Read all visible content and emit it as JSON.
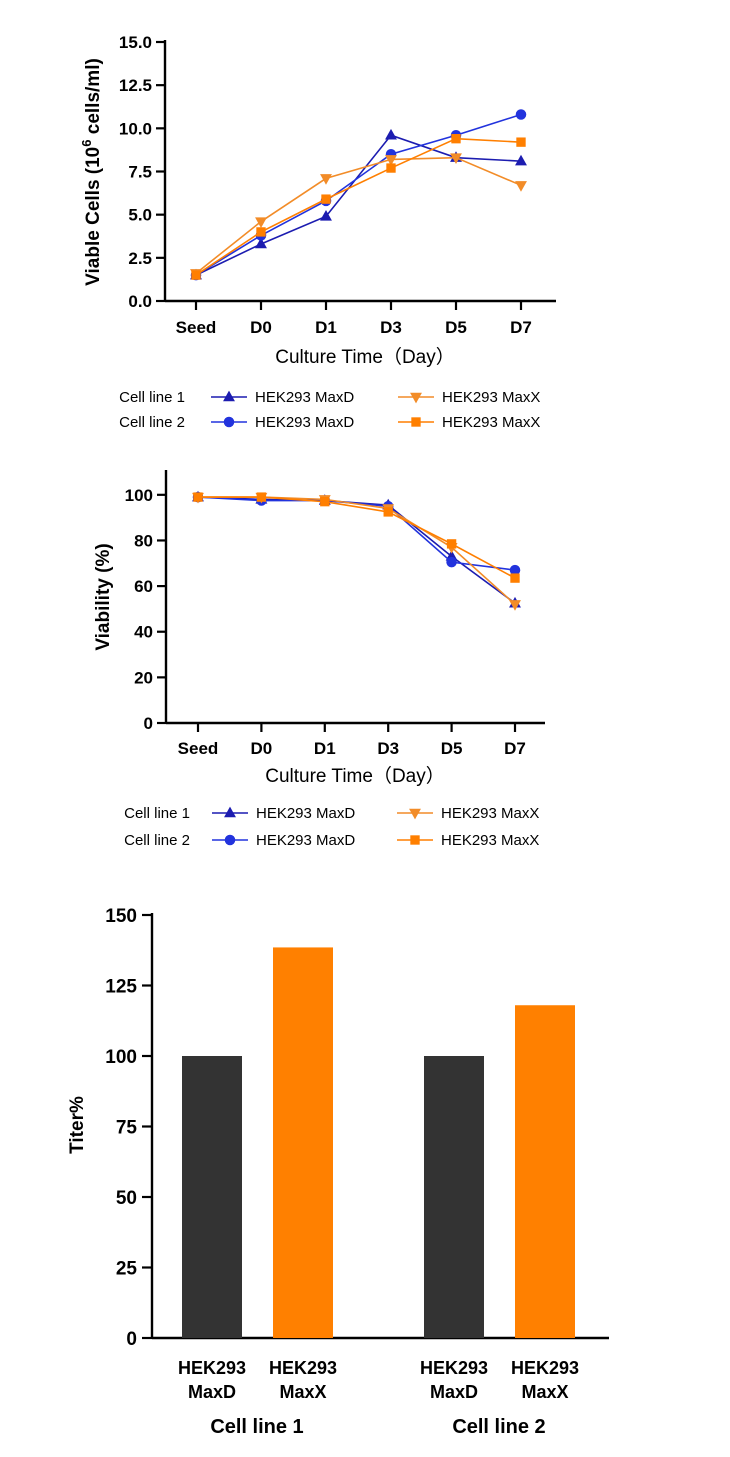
{
  "colors": {
    "maxd_navy": "#1c1cb0",
    "maxd_blue": "#2233dd",
    "maxx_orange": "#f28c28",
    "maxx_deeporange": "#ff7f00",
    "bar_dark": "#333333",
    "bar_orange": "#ff8000"
  },
  "chart_data": [
    {
      "id": "viable",
      "type": "line",
      "ylabel_main": "Viable Cells (10",
      "ylabel_sup": "6",
      "ylabel_end": " cells/ml)",
      "xlabel": "Culture Time（Day）",
      "categories": [
        "Seed",
        "D0",
        "D1",
        "D3",
        "D5",
        "D7"
      ],
      "ylim": [
        0,
        15
      ],
      "yticks": [
        "0.0",
        "2.5",
        "5.0",
        "7.5",
        "10.0",
        "12.5",
        "15.0"
      ],
      "series": [
        {
          "name": "HEK293 MaxD",
          "group": "Cell line 1",
          "marker": "triangle-up",
          "color": "#1c1cb0",
          "values": [
            1.5,
            3.3,
            4.9,
            9.6,
            8.3,
            8.1
          ]
        },
        {
          "name": "HEK293 MaxD",
          "group": "Cell line 2",
          "marker": "circle",
          "color": "#2233dd",
          "values": [
            1.5,
            3.8,
            5.8,
            8.5,
            9.6,
            10.8
          ]
        },
        {
          "name": "HEK293 MaxX",
          "group": "Cell line 1",
          "marker": "triangle-down",
          "color": "#f28c28",
          "values": [
            1.6,
            4.6,
            7.1,
            8.2,
            8.3,
            6.7
          ]
        },
        {
          "name": "HEK293 MaxX",
          "group": "Cell line 2",
          "marker": "square",
          "color": "#ff7f00",
          "values": [
            1.5,
            4.0,
            5.9,
            7.7,
            9.4,
            9.2
          ]
        }
      ],
      "legend": {
        "rows": [
          "Cell line 1",
          "Cell line 2"
        ],
        "cols": [
          "HEK293 MaxD",
          "HEK293 MaxX"
        ]
      }
    },
    {
      "id": "viability",
      "type": "line",
      "ylabel": "Viability (%)",
      "xlabel": "Culture Time（Day）",
      "categories": [
        "Seed",
        "D0",
        "D1",
        "D3",
        "D5",
        "D7"
      ],
      "ylim": [
        0,
        110
      ],
      "yticks": [
        "0",
        "20",
        "40",
        "60",
        "80",
        "100"
      ],
      "series": [
        {
          "name": "HEK293 MaxD",
          "group": "Cell line 1",
          "marker": "triangle-up",
          "color": "#1c1cb0",
          "values": [
            99,
            98,
            97.5,
            95.5,
            73,
            52.5
          ]
        },
        {
          "name": "HEK293 MaxD",
          "group": "Cell line 2",
          "marker": "circle",
          "color": "#2233dd",
          "values": [
            99,
            97.5,
            97.5,
            95,
            70.5,
            67
          ]
        },
        {
          "name": "HEK293 MaxX",
          "group": "Cell line 1",
          "marker": "triangle-down",
          "color": "#f28c28",
          "values": [
            99,
            99,
            98,
            94,
            77,
            52
          ]
        },
        {
          "name": "HEK293 MaxX",
          "group": "Cell line 2",
          "marker": "square",
          "color": "#ff7f00",
          "values": [
            99,
            99,
            97,
            92.5,
            78.5,
            63.5
          ]
        }
      ],
      "legend": {
        "rows": [
          "Cell line 1",
          "Cell line 2"
        ],
        "cols": [
          "HEK293 MaxD",
          "HEK293 MaxX"
        ]
      }
    },
    {
      "id": "titer",
      "type": "bar",
      "ylabel": "Titer%",
      "ylim": [
        0,
        150
      ],
      "yticks": [
        "0",
        "25",
        "50",
        "75",
        "100",
        "125",
        "150"
      ],
      "groups": [
        "Cell line 1",
        "Cell line 2"
      ],
      "bars": [
        {
          "group": "Cell line 1",
          "line1": "HEK293",
          "line2": "MaxD",
          "value": 100,
          "color": "#333333"
        },
        {
          "group": "Cell line 1",
          "line1": "HEK293",
          "line2": "MaxX",
          "value": 138.5,
          "color": "#ff8000"
        },
        {
          "group": "Cell line 2",
          "line1": "HEK293",
          "line2": "MaxD",
          "value": 100,
          "color": "#333333"
        },
        {
          "group": "Cell line 2",
          "line1": "HEK293",
          "line2": "MaxX",
          "value": 118,
          "color": "#ff8000"
        }
      ]
    }
  ]
}
